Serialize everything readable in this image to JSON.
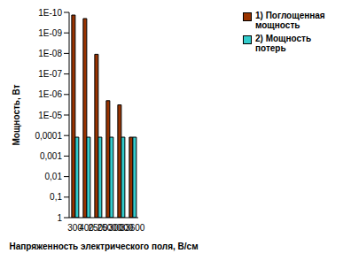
{
  "chart_data": {
    "type": "bar",
    "categories": [
      "300",
      "400",
      "2500",
      "25000",
      "30000",
      "33600"
    ],
    "series": [
      {
        "name": "1) Поглощенная мощность",
        "color": "#993300",
        "values": [
          1.35e-10,
          2e-10,
          1.1e-08,
          2e-06,
          3.2e-06,
          0.00012
        ]
      },
      {
        "name": "2) Мощность потерь",
        "color": "#33cccc",
        "values": [
          0.00012,
          0.00012,
          0.00012,
          0.00012,
          0.00012,
          0.00012
        ]
      }
    ],
    "xlabel": "Напряженность электрического поля, В/см",
    "ylabel": "Мощность, Вт",
    "ylim": [
      1,
      1e-10
    ],
    "yticks": [
      {
        "value": 1e-10,
        "label": "1E-10"
      },
      {
        "value": 1e-09,
        "label": "1E-09"
      },
      {
        "value": 1e-08,
        "label": "1E-08"
      },
      {
        "value": 1e-07,
        "label": "1E-07"
      },
      {
        "value": 1e-06,
        "label": "1E-06"
      },
      {
        "value": 1e-05,
        "label": "1E-05"
      },
      {
        "value": 0.0001,
        "label": "0,0001"
      },
      {
        "value": 0.001,
        "label": "0,001"
      },
      {
        "value": 0.01,
        "label": "0,01"
      },
      {
        "value": 0.1,
        "label": "0,1"
      },
      1
    ],
    "log": "y",
    "legend": "upper right",
    "grid": false
  }
}
